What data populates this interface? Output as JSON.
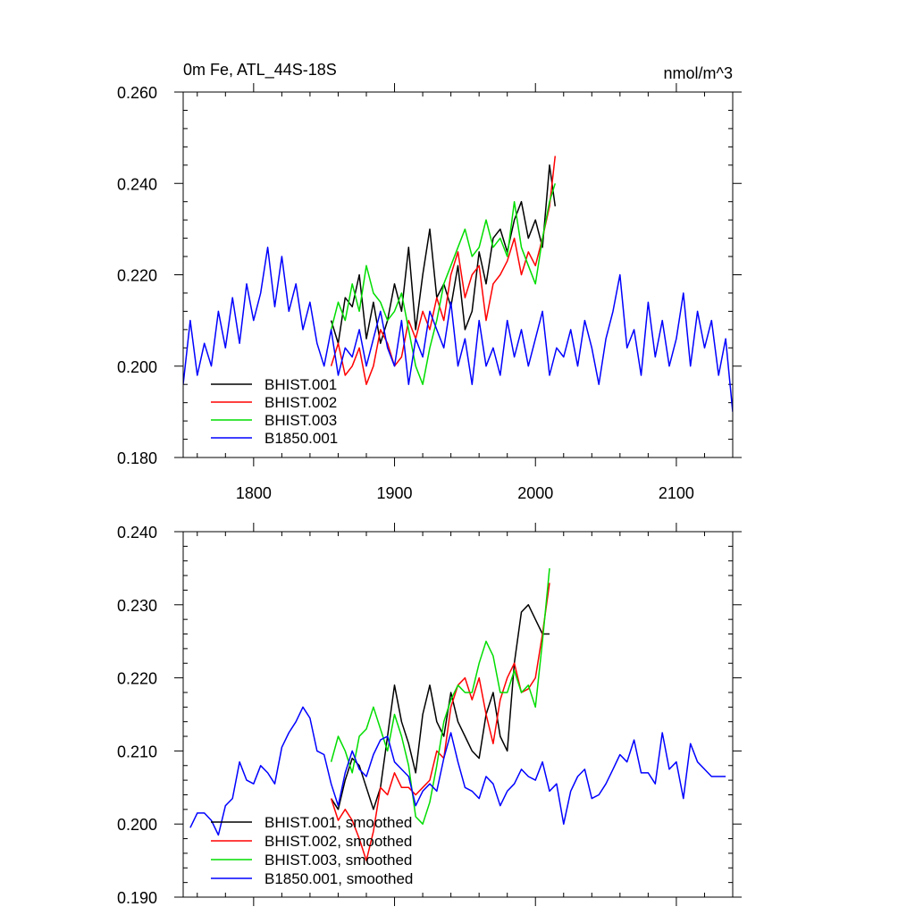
{
  "chart_data": [
    {
      "type": "line",
      "title": "0m Fe, ATL_44S-18S",
      "units": "nmol/m^3",
      "xlim": [
        1750,
        2140
      ],
      "ylim": [
        0.18,
        0.26
      ],
      "x_ticks": [
        1800,
        1900,
        2000,
        2100
      ],
      "x_tick_labels": [
        "1800",
        "1900",
        "2000",
        "2100"
      ],
      "y_ticks": [
        0.18,
        0.2,
        0.22,
        0.24,
        0.26
      ],
      "y_tick_labels": [
        "0.180",
        "0.200",
        "0.220",
        "0.240",
        "0.260"
      ],
      "legend_position": "bottom-left",
      "series": [
        {
          "name": "BHIST.001",
          "color": "#000000",
          "x": [
            1855,
            1860,
            1865,
            1870,
            1875,
            1880,
            1885,
            1890,
            1895,
            1900,
            1905,
            1910,
            1915,
            1920,
            1925,
            1930,
            1935,
            1940,
            1945,
            1950,
            1955,
            1960,
            1965,
            1970,
            1975,
            1980,
            1985,
            1990,
            1995,
            2000,
            2005,
            2010,
            2014
          ],
          "y": [
            0.21,
            0.205,
            0.215,
            0.213,
            0.22,
            0.206,
            0.214,
            0.205,
            0.21,
            0.218,
            0.212,
            0.226,
            0.208,
            0.22,
            0.23,
            0.215,
            0.218,
            0.213,
            0.222,
            0.208,
            0.212,
            0.225,
            0.218,
            0.228,
            0.23,
            0.225,
            0.232,
            0.236,
            0.228,
            0.232,
            0.226,
            0.244,
            0.235
          ]
        },
        {
          "name": "BHIST.002",
          "color": "#ff0000",
          "x": [
            1855,
            1860,
            1865,
            1870,
            1875,
            1880,
            1885,
            1890,
            1895,
            1900,
            1905,
            1910,
            1915,
            1920,
            1925,
            1930,
            1935,
            1940,
            1945,
            1950,
            1955,
            1960,
            1965,
            1970,
            1975,
            1980,
            1985,
            1990,
            1995,
            2000,
            2005,
            2010,
            2014
          ],
          "y": [
            0.2,
            0.205,
            0.198,
            0.2,
            0.204,
            0.196,
            0.2,
            0.208,
            0.205,
            0.2,
            0.202,
            0.21,
            0.206,
            0.212,
            0.208,
            0.215,
            0.21,
            0.22,
            0.225,
            0.215,
            0.22,
            0.222,
            0.21,
            0.218,
            0.22,
            0.223,
            0.228,
            0.22,
            0.225,
            0.222,
            0.228,
            0.235,
            0.246
          ]
        },
        {
          "name": "BHIST.003",
          "color": "#00dd00",
          "x": [
            1855,
            1860,
            1865,
            1870,
            1875,
            1880,
            1885,
            1890,
            1895,
            1900,
            1905,
            1910,
            1915,
            1920,
            1925,
            1930,
            1935,
            1940,
            1945,
            1950,
            1955,
            1960,
            1965,
            1970,
            1975,
            1980,
            1985,
            1990,
            1995,
            2000,
            2005,
            2010,
            2014
          ],
          "y": [
            0.208,
            0.214,
            0.21,
            0.218,
            0.212,
            0.222,
            0.216,
            0.214,
            0.21,
            0.212,
            0.216,
            0.208,
            0.2,
            0.196,
            0.204,
            0.21,
            0.218,
            0.222,
            0.226,
            0.23,
            0.224,
            0.226,
            0.232,
            0.226,
            0.228,
            0.224,
            0.236,
            0.226,
            0.222,
            0.218,
            0.228,
            0.236,
            0.24
          ]
        },
        {
          "name": "B1850.001",
          "color": "#0000ff",
          "x": [
            1750,
            1755,
            1760,
            1765,
            1770,
            1775,
            1780,
            1785,
            1790,
            1795,
            1800,
            1805,
            1810,
            1815,
            1820,
            1825,
            1830,
            1835,
            1840,
            1845,
            1850,
            1855,
            1860,
            1865,
            1870,
            1875,
            1880,
            1885,
            1890,
            1895,
            1900,
            1905,
            1910,
            1915,
            1920,
            1925,
            1930,
            1935,
            1940,
            1945,
            1950,
            1955,
            1960,
            1965,
            1970,
            1975,
            1980,
            1985,
            1990,
            1995,
            2000,
            2005,
            2010,
            2015,
            2020,
            2025,
            2030,
            2035,
            2040,
            2045,
            2050,
            2055,
            2060,
            2065,
            2070,
            2075,
            2080,
            2085,
            2090,
            2095,
            2100,
            2105,
            2110,
            2115,
            2120,
            2125,
            2130,
            2135,
            2140
          ],
          "y": [
            0.196,
            0.21,
            0.198,
            0.205,
            0.2,
            0.212,
            0.204,
            0.215,
            0.205,
            0.218,
            0.21,
            0.216,
            0.226,
            0.213,
            0.224,
            0.212,
            0.218,
            0.208,
            0.214,
            0.205,
            0.2,
            0.208,
            0.198,
            0.204,
            0.202,
            0.208,
            0.2,
            0.206,
            0.212,
            0.204,
            0.2,
            0.21,
            0.196,
            0.206,
            0.202,
            0.212,
            0.208,
            0.204,
            0.214,
            0.2,
            0.206,
            0.196,
            0.21,
            0.2,
            0.204,
            0.198,
            0.21,
            0.202,
            0.208,
            0.2,
            0.206,
            0.212,
            0.198,
            0.204,
            0.202,
            0.208,
            0.2,
            0.21,
            0.204,
            0.196,
            0.206,
            0.212,
            0.22,
            0.204,
            0.208,
            0.198,
            0.214,
            0.202,
            0.21,
            0.2,
            0.206,
            0.216,
            0.2,
            0.212,
            0.204,
            0.21,
            0.198,
            0.206,
            0.19
          ]
        }
      ]
    },
    {
      "type": "line",
      "xlim": [
        1750,
        2140
      ],
      "ylim": [
        0.19,
        0.24
      ],
      "x_ticks": [
        1800,
        1900,
        2000,
        2100
      ],
      "y_ticks": [
        0.19,
        0.2,
        0.21,
        0.22,
        0.23,
        0.24
      ],
      "y_tick_labels": [
        "0.190",
        "0.200",
        "0.210",
        "0.220",
        "0.230",
        "0.240"
      ],
      "legend_position": "bottom-left",
      "series": [
        {
          "name": "BHIST.001, smoothed",
          "color": "#000000",
          "x": [
            1855,
            1860,
            1865,
            1870,
            1875,
            1880,
            1885,
            1890,
            1895,
            1900,
            1905,
            1910,
            1915,
            1920,
            1925,
            1930,
            1935,
            1940,
            1945,
            1950,
            1955,
            1960,
            1965,
            1970,
            1975,
            1980,
            1985,
            1990,
            1995,
            2000,
            2005,
            2010
          ],
          "y": [
            0.2035,
            0.202,
            0.206,
            0.209,
            0.208,
            0.205,
            0.202,
            0.205,
            0.212,
            0.219,
            0.214,
            0.211,
            0.207,
            0.215,
            0.219,
            0.214,
            0.212,
            0.218,
            0.214,
            0.212,
            0.21,
            0.209,
            0.215,
            0.218,
            0.212,
            0.21,
            0.222,
            0.229,
            0.23,
            0.228,
            0.226,
            0.226
          ]
        },
        {
          "name": "BHIST.002, smoothed",
          "color": "#ff0000",
          "x": [
            1855,
            1860,
            1865,
            1870,
            1875,
            1880,
            1885,
            1890,
            1895,
            1900,
            1905,
            1910,
            1915,
            1920,
            1925,
            1930,
            1935,
            1940,
            1945,
            1950,
            1955,
            1960,
            1965,
            1970,
            1975,
            1980,
            1985,
            1990,
            1995,
            2000,
            2005,
            2010
          ],
          "y": [
            0.2035,
            0.2005,
            0.202,
            0.2005,
            0.198,
            0.195,
            0.199,
            0.205,
            0.204,
            0.207,
            0.205,
            0.205,
            0.204,
            0.205,
            0.206,
            0.21,
            0.209,
            0.216,
            0.219,
            0.22,
            0.217,
            0.22,
            0.215,
            0.211,
            0.217,
            0.22,
            0.222,
            0.218,
            0.2185,
            0.22,
            0.226,
            0.233
          ]
        },
        {
          "name": "BHIST.003, smoothed",
          "color": "#00dd00",
          "x": [
            1855,
            1860,
            1865,
            1870,
            1875,
            1880,
            1885,
            1890,
            1895,
            1900,
            1905,
            1910,
            1915,
            1920,
            1925,
            1930,
            1935,
            1940,
            1945,
            1950,
            1955,
            1960,
            1965,
            1970,
            1975,
            1980,
            1985,
            1990,
            1995,
            2000,
            2005,
            2010
          ],
          "y": [
            0.2085,
            0.212,
            0.21,
            0.207,
            0.212,
            0.213,
            0.216,
            0.213,
            0.21,
            0.215,
            0.212,
            0.208,
            0.201,
            0.2,
            0.203,
            0.208,
            0.214,
            0.217,
            0.219,
            0.218,
            0.218,
            0.222,
            0.225,
            0.223,
            0.218,
            0.218,
            0.221,
            0.218,
            0.219,
            0.216,
            0.225,
            0.235
          ]
        },
        {
          "name": "B1850.001, smoothed",
          "color": "#0000ff",
          "x": [
            1755,
            1760,
            1765,
            1770,
            1775,
            1780,
            1785,
            1790,
            1795,
            1800,
            1805,
            1810,
            1815,
            1820,
            1825,
            1830,
            1835,
            1840,
            1845,
            1850,
            1855,
            1860,
            1865,
            1870,
            1875,
            1880,
            1885,
            1890,
            1895,
            1900,
            1905,
            1910,
            1915,
            1920,
            1925,
            1930,
            1935,
            1940,
            1945,
            1950,
            1955,
            1960,
            1965,
            1970,
            1975,
            1980,
            1985,
            1990,
            1995,
            2000,
            2005,
            2010,
            2015,
            2020,
            2025,
            2030,
            2035,
            2040,
            2045,
            2050,
            2055,
            2060,
            2065,
            2070,
            2075,
            2080,
            2085,
            2090,
            2095,
            2100,
            2105,
            2110,
            2115,
            2120,
            2125,
            2130,
            2135
          ],
          "y": [
            0.1995,
            0.2015,
            0.2015,
            0.2005,
            0.1985,
            0.2025,
            0.2035,
            0.2085,
            0.206,
            0.2055,
            0.208,
            0.207,
            0.2055,
            0.2105,
            0.2125,
            0.214,
            0.216,
            0.2145,
            0.21,
            0.2095,
            0.2055,
            0.2025,
            0.207,
            0.21,
            0.2075,
            0.2065,
            0.2095,
            0.2115,
            0.212,
            0.2085,
            0.2075,
            0.2065,
            0.2025,
            0.2045,
            0.2055,
            0.2045,
            0.209,
            0.2125,
            0.2085,
            0.205,
            0.2045,
            0.2035,
            0.2065,
            0.2055,
            0.2025,
            0.2045,
            0.2055,
            0.2075,
            0.2065,
            0.206,
            0.2085,
            0.2045,
            0.2055,
            0.2,
            0.2045,
            0.2065,
            0.2075,
            0.2035,
            0.204,
            0.2055,
            0.2075,
            0.2095,
            0.2085,
            0.2115,
            0.207,
            0.207,
            0.2055,
            0.2125,
            0.2075,
            0.2085,
            0.2035,
            0.211,
            0.2085,
            0.2075,
            0.2065,
            0.2065,
            0.2065
          ]
        }
      ]
    }
  ]
}
